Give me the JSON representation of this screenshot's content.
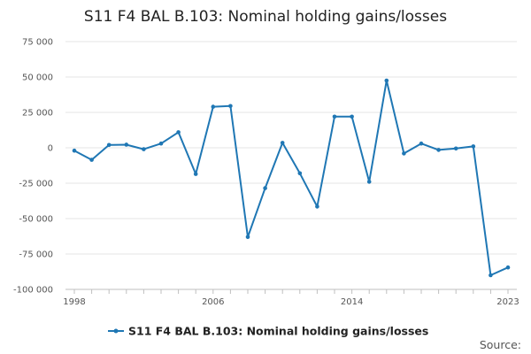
{
  "chart_data": {
    "type": "line",
    "title": "S11 F4 BAL B.103: Nominal holding gains/losses",
    "xlabel": "",
    "ylabel": "",
    "x": [
      1998,
      1999,
      2000,
      2001,
      2002,
      2003,
      2004,
      2005,
      2006,
      2007,
      2008,
      2009,
      2010,
      2011,
      2012,
      2013,
      2014,
      2015,
      2016,
      2017,
      2018,
      2019,
      2020,
      2021,
      2022,
      2023
    ],
    "series": [
      {
        "name": "S11 F4 BAL B.103: Nominal holding gains/losses",
        "color": "#1f77b4",
        "values": [
          -2000,
          -8500,
          2000,
          2200,
          -1000,
          3000,
          11000,
          -18500,
          29000,
          29500,
          -63000,
          -28500,
          3500,
          -18000,
          -41500,
          22000,
          22000,
          -24000,
          47500,
          -4000,
          3000,
          -1500,
          -500,
          1000,
          -90000,
          -84500
        ]
      }
    ],
    "xlim": [
      1998,
      2023
    ],
    "ylim": [
      -100000,
      75000
    ],
    "yticks": [
      "75 000",
      "50 000",
      "25 000",
      "0",
      "-25 000",
      "-50 000",
      "-75 000",
      "-100 000"
    ],
    "ytick_values": [
      75000,
      50000,
      25000,
      0,
      -25000,
      -50000,
      -75000,
      -100000
    ],
    "xticks": [
      "1998",
      "2006",
      "2014",
      "2023"
    ],
    "xtick_values": [
      1998,
      2006,
      2014,
      2023
    ],
    "grid": true,
    "legend": "bottom-center",
    "source_label": "Source:"
  }
}
